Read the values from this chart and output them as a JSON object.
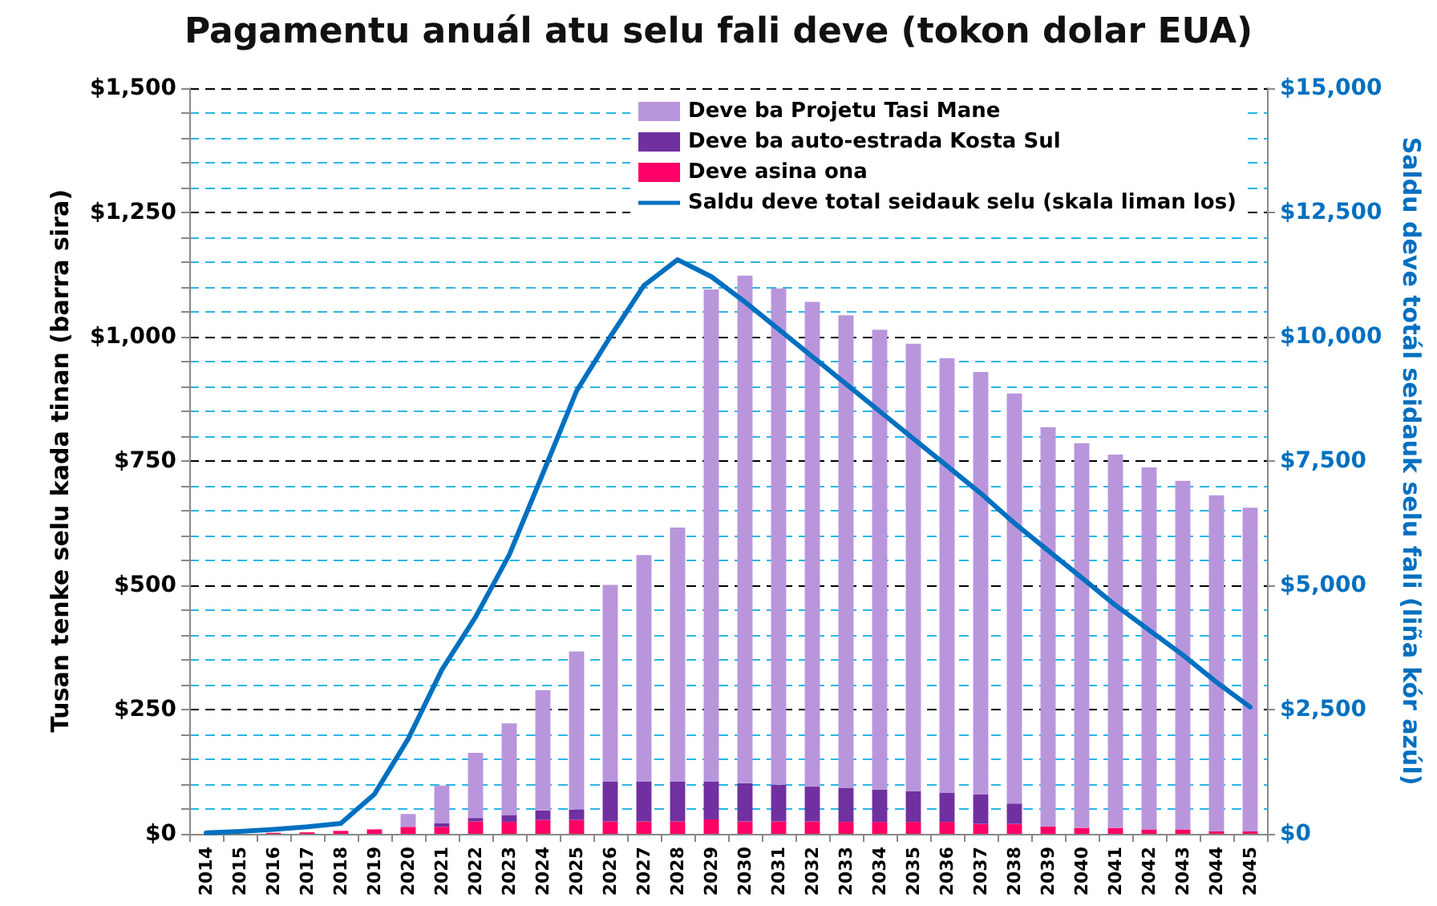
{
  "chart_data": {
    "type": "bar",
    "title": "Pagamentu anuál atu selu fali deve (tokon dolar EUA)",
    "ylabel": "Tusan tenke selu kada tinan (barra sira)",
    "y2label": "Saldu deve totál seidauk selu fali (liña kór azúl)",
    "categories": [
      "2014",
      "2015",
      "2016",
      "2017",
      "2018",
      "2019",
      "2020",
      "2021",
      "2022",
      "2023",
      "2024",
      "2025",
      "2026",
      "2027",
      "2028",
      "2029",
      "2030",
      "2031",
      "2032",
      "2033",
      "2034",
      "2035",
      "2036",
      "2037",
      "2038",
      "2039",
      "2040",
      "2041",
      "2042",
      "2043",
      "2044",
      "2045"
    ],
    "stacked": true,
    "series": [
      {
        "name": "Deve asina ona",
        "color": "#ff0066",
        "values": [
          0,
          0,
          2,
          3,
          6,
          9,
          14,
          14,
          25,
          24,
          28,
          28,
          25,
          25,
          25,
          29,
          25,
          25,
          25,
          24,
          24,
          24,
          24,
          20,
          20,
          15,
          12,
          12,
          9,
          9,
          5,
          5
        ]
      },
      {
        "name": "Deve ba auto-estrada Kosta Sul",
        "color": "#7030a0",
        "values": [
          0,
          0,
          0,
          0,
          0,
          0,
          0,
          7,
          7,
          14,
          19,
          21,
          80,
          80,
          80,
          76,
          77,
          74,
          70,
          68,
          65,
          62,
          59,
          59,
          41,
          0,
          0,
          0,
          0,
          0,
          0,
          0
        ]
      },
      {
        "name": "Deve ba Projetu Tasi Mane",
        "color": "#b996dc",
        "values": [
          0,
          0,
          0,
          0,
          0,
          0,
          26,
          76,
          131,
          184,
          242,
          318,
          396,
          456,
          511,
          990,
          1021,
          998,
          975,
          951,
          925,
          900,
          874,
          850,
          825,
          803,
          774,
          751,
          728,
          701,
          676,
          651
        ]
      },
      {
        "name": "Saldu deve total seidauk selu (skala liman los)",
        "type": "line",
        "axis": "y2",
        "color": "#0070c0",
        "values": [
          20,
          50,
          90,
          140,
          210,
          800,
          1910,
          3300,
          4360,
          5610,
          7250,
          8910,
          10000,
          11030,
          11550,
          11210,
          10700,
          10150,
          9600,
          9050,
          8500,
          7950,
          7400,
          6850,
          6250,
          5700,
          5150,
          4600,
          4100,
          3600,
          3050,
          2550
        ]
      }
    ],
    "ylim": [
      0,
      1500
    ],
    "yticks": [
      {
        "value": 0,
        "label": "$0"
      },
      {
        "value": 50,
        "label": null
      },
      {
        "value": 100,
        "label": null
      },
      {
        "value": 150,
        "label": null
      },
      {
        "value": 200,
        "label": null
      },
      {
        "value": 250,
        "label": "$250"
      },
      {
        "value": 300,
        "label": null
      },
      {
        "value": 350,
        "label": null
      },
      {
        "value": 400,
        "label": null
      },
      {
        "value": 450,
        "label": null
      },
      {
        "value": 500,
        "label": "$500"
      },
      {
        "value": 550,
        "label": null
      },
      {
        "value": 600,
        "label": null
      },
      {
        "value": 650,
        "label": null
      },
      {
        "value": 700,
        "label": null
      },
      {
        "value": 750,
        "label": "$750"
      },
      {
        "value": 800,
        "label": null
      },
      {
        "value": 850,
        "label": null
      },
      {
        "value": 900,
        "label": null
      },
      {
        "value": 950,
        "label": null
      },
      {
        "value": 1000,
        "label": "$1,000"
      },
      {
        "value": 1050,
        "label": null
      },
      {
        "value": 1100,
        "label": null
      },
      {
        "value": 1150,
        "label": null
      },
      {
        "value": 1200,
        "label": null
      },
      {
        "value": 1250,
        "label": "$1,250"
      },
      {
        "value": 1300,
        "label": null
      },
      {
        "value": 1350,
        "label": null
      },
      {
        "value": 1400,
        "label": null
      },
      {
        "value": 1450,
        "label": null
      },
      {
        "value": 1500,
        "label": "$1,500"
      }
    ],
    "y2lim": [
      0,
      15000
    ],
    "y2ticks": [
      {
        "value": 0,
        "label": "$0"
      },
      {
        "value": 2500,
        "label": "$2,500"
      },
      {
        "value": 5000,
        "label": "$5,000"
      },
      {
        "value": 7500,
        "label": "$7,500"
      },
      {
        "value": 10000,
        "label": "$10,000"
      },
      {
        "value": 12500,
        "label": "$12,500"
      },
      {
        "value": 15000,
        "label": "$15,000"
      }
    ],
    "grid": "y",
    "legend": "top right",
    "marker": "none",
    "line_style": "solid"
  }
}
